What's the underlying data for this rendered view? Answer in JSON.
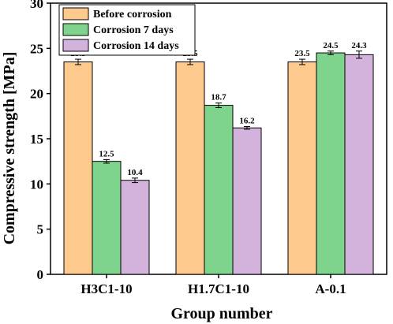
{
  "chart_data": {
    "type": "bar",
    "xlabel": "Group number",
    "ylabel": "Compressive strength [MPa]",
    "ylim": [
      0,
      30
    ],
    "yticks": [
      0,
      5,
      10,
      15,
      20,
      25,
      30
    ],
    "categories": [
      "H3C1-10",
      "H1.7C1-10",
      "A-0.1"
    ],
    "series": [
      {
        "name": "Before corrosion",
        "color": "#FDC98D",
        "values": [
          23.5,
          23.5,
          23.5
        ],
        "errors": [
          0.3,
          0.3,
          0.3
        ],
        "labels": [
          "23.5",
          "23.5",
          "23.5"
        ]
      },
      {
        "name": "Corrosion 7 days",
        "color": "#7FD48D",
        "values": [
          12.5,
          18.7,
          24.5
        ],
        "errors": [
          0.2,
          0.25,
          0.2
        ],
        "labels": [
          "12.5",
          "18.7",
          "24.5"
        ]
      },
      {
        "name": "Corrosion 14 days",
        "color": "#D3B3DC",
        "values": [
          10.4,
          16.2,
          24.3
        ],
        "errors": [
          0.25,
          0.15,
          0.4
        ],
        "labels": [
          "10.4",
          "16.2",
          "24.3"
        ]
      }
    ],
    "legend_position": "top-left",
    "grid": false,
    "error_bars": true
  }
}
